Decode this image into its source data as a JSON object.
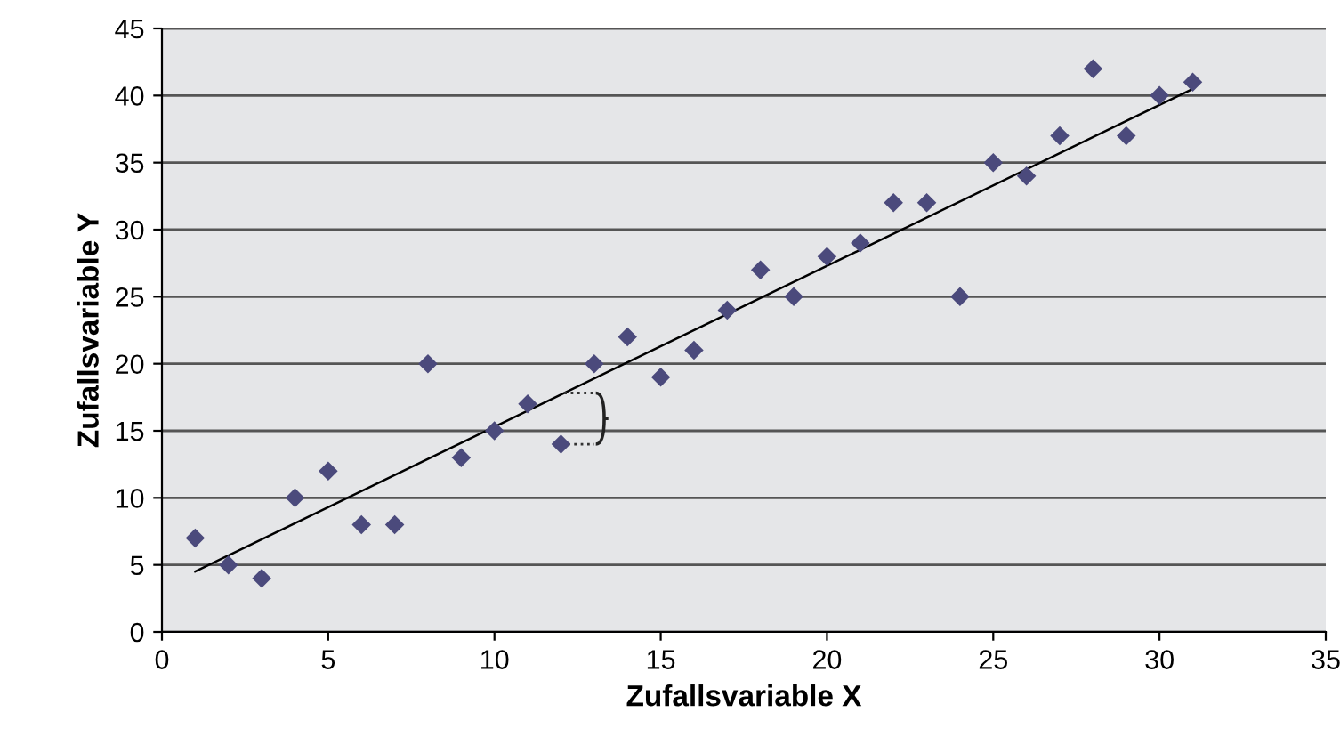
{
  "chart_data": {
    "type": "scatter",
    "xlabel": "Zufallsvariable X",
    "ylabel": "Zufallsvariable Y",
    "series": [
      {
        "color": "#4b4a7c",
        "marker": "diamond",
        "x": [
          1,
          2,
          3,
          4,
          5,
          6,
          7,
          8,
          9,
          10,
          11,
          12,
          13,
          14,
          15,
          16,
          17,
          18,
          19,
          20,
          21,
          22,
          23,
          24,
          25,
          26,
          27,
          28,
          29,
          30,
          31
        ],
        "values": [
          7,
          5,
          4,
          10,
          12,
          8,
          8,
          20,
          13,
          15,
          17,
          14,
          20,
          22,
          19,
          21,
          24,
          27,
          25,
          28,
          29,
          32,
          32,
          25,
          35,
          34,
          37,
          42,
          37,
          40,
          41
        ]
      },
      {
        "type": "line",
        "color": "#000000",
        "marker": "none",
        "line_style": "solid",
        "x": [
          1,
          31
        ],
        "values": [
          4.5,
          40.5
        ]
      }
    ],
    "xlim": [
      0,
      35
    ],
    "xticks": [
      0,
      5,
      10,
      15,
      20,
      25,
      30,
      35
    ],
    "ylim": [
      0,
      45
    ],
    "yticks": [
      0,
      5,
      10,
      15,
      20,
      25,
      30,
      35,
      40,
      45
    ],
    "grid": "y",
    "legend": false
  }
}
